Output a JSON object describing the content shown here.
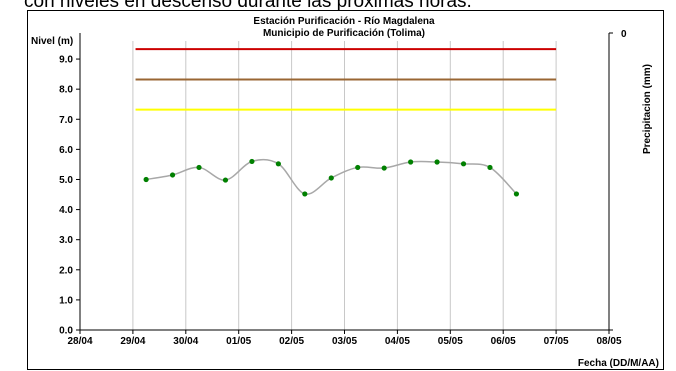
{
  "caption": "con niveles en descenso durante las próximas horas.",
  "chart_data": {
    "type": "line",
    "title": "Estación Purificación - Río Magdalena",
    "subtitle": "Municipio de Purificación (Tolima)",
    "ylabel": "Nivel (m)",
    "y2label": "Precipitacion (mm)",
    "xlabel": "Fecha (DD/M/AA)",
    "ylim": [
      0,
      9.6
    ],
    "y_ticks": [
      "0.0",
      "1.0",
      "2.0",
      "3.0",
      "4.0",
      "5.0",
      "6.0",
      "7.0",
      "8.0",
      "9.0"
    ],
    "y2_ticks": [
      "0"
    ],
    "x_ticks": [
      "28/04",
      "29/04",
      "30/04",
      "01/05",
      "02/05",
      "03/05",
      "04/05",
      "05/05",
      "06/05",
      "07/05",
      "08/05"
    ],
    "grid": {
      "vertical": true,
      "horizontal": false
    },
    "thresholds": [
      {
        "value": 9.33,
        "color": "#cc0000",
        "from": 1.05,
        "to": 9.0
      },
      {
        "value": 8.32,
        "color": "#996633",
        "from": 1.05,
        "to": 9.0
      },
      {
        "value": 7.32,
        "color": "#ffff00",
        "from": 1.05,
        "to": 9.0
      }
    ],
    "series": [
      {
        "color": "#a8a8a8",
        "marker_color": "#008000",
        "x": [
          1.25,
          1.75,
          2.25,
          2.75,
          3.25,
          3.75,
          4.25,
          4.75,
          5.25,
          5.75,
          6.25,
          6.75,
          7.25,
          7.75,
          8.25
        ],
        "values": [
          5.0,
          5.15,
          5.4,
          4.98,
          5.6,
          5.52,
          4.52,
          5.05,
          5.4,
          5.38,
          5.58,
          5.58,
          5.52,
          5.4,
          4.52
        ]
      }
    ]
  }
}
